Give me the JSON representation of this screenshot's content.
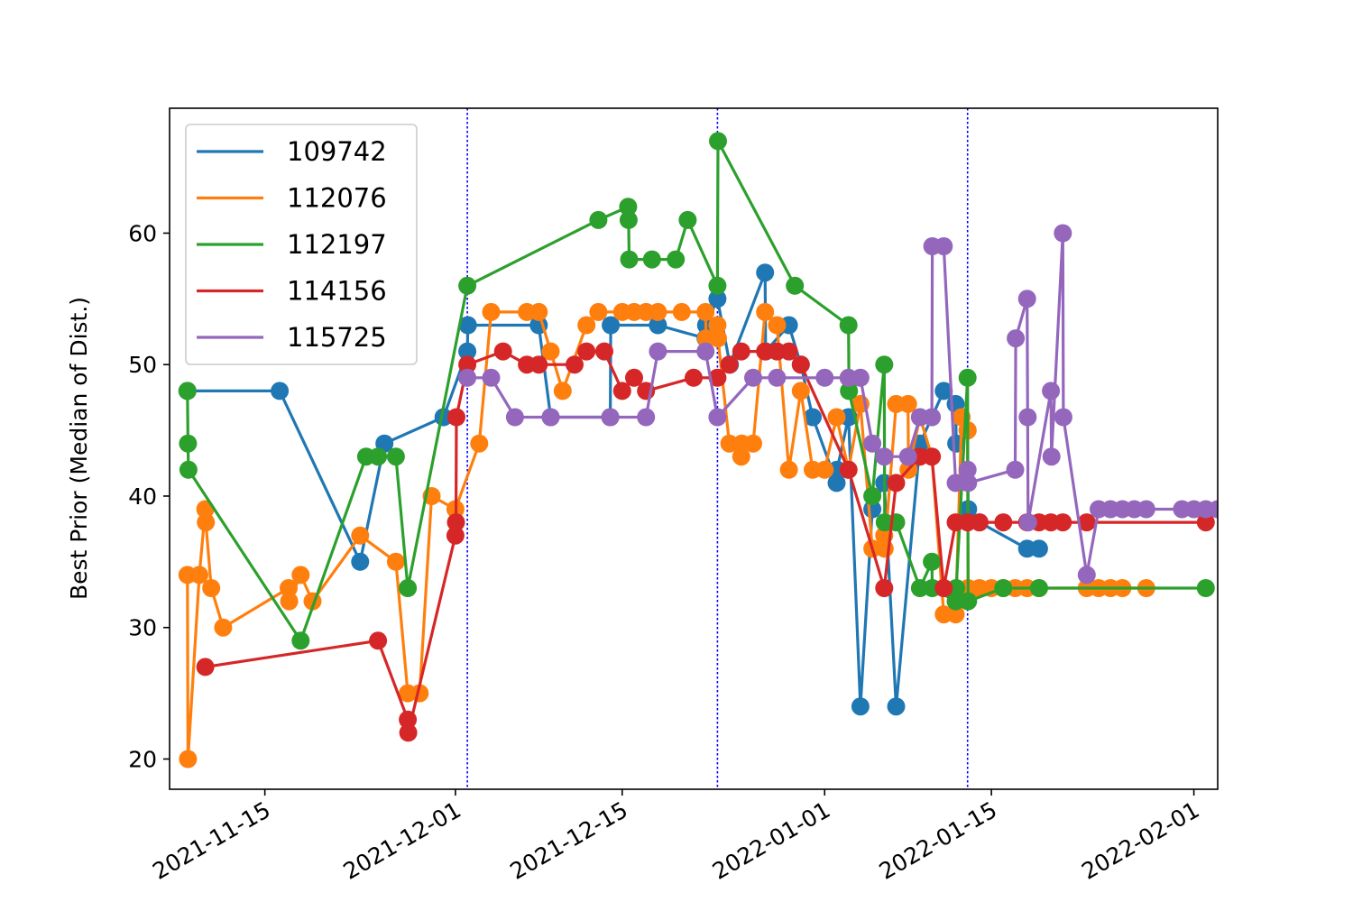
{
  "chart_data": {
    "type": "line",
    "xlabel": "",
    "ylabel": "Best Prior (Median of Dist.)",
    "xlim": [
      "2021-11-07",
      "2022-02-03"
    ],
    "ylim": [
      17.7,
      69.5
    ],
    "x_ticks": [
      "2021-11-15",
      "2021-12-01",
      "2021-12-15",
      "2022-01-01",
      "2022-01-15",
      "2022-02-01"
    ],
    "y_ticks": [
      20,
      30,
      40,
      50,
      60
    ],
    "grid": false,
    "legend": {
      "placement": "upper-left"
    },
    "vlines": [
      "2021-12-02",
      "2021-12-23",
      "2022-01-13"
    ],
    "vline_color": "#0000ff",
    "series": [
      {
        "name": "109742",
        "color": "#1f77b4",
        "points": [
          [
            "2021-11-08T12:00",
            48
          ],
          [
            "2021-11-16T06:00",
            48
          ],
          [
            "2021-11-23T00:00",
            35
          ],
          [
            "2021-11-25T01:00",
            44
          ],
          [
            "2021-11-30T00:00",
            46
          ],
          [
            "2021-12-02T00:00",
            51
          ],
          [
            "2021-12-02T01:00",
            53
          ],
          [
            "2021-12-08T00:00",
            53
          ],
          [
            "2021-12-09T00:00",
            46
          ],
          [
            "2021-12-14T00:00",
            46
          ],
          [
            "2021-12-14T01:00",
            53
          ],
          [
            "2021-12-18T00:00",
            53
          ],
          [
            "2021-12-22T00:00",
            52
          ],
          [
            "2021-12-22T01:00",
            53
          ],
          [
            "2021-12-23T00:00",
            55
          ],
          [
            "2021-12-24T01:00",
            50
          ],
          [
            "2021-12-27T00:00",
            57
          ],
          [
            "2021-12-27T01:00",
            51
          ],
          [
            "2021-12-29T00:00",
            53
          ],
          [
            "2021-12-30T00:00",
            50
          ],
          [
            "2021-12-31T00:00",
            46
          ],
          [
            "2022-01-02T00:00",
            41
          ],
          [
            "2022-01-02T01:00",
            42
          ],
          [
            "2022-01-03T00:00",
            46
          ],
          [
            "2022-01-04T00:00",
            24
          ],
          [
            "2022-01-05T00:00",
            39
          ],
          [
            "2022-01-06T00:00",
            41
          ],
          [
            "2022-01-07T00:00",
            24
          ],
          [
            "2022-01-09T00:00",
            44
          ],
          [
            "2022-01-11T00:00",
            48
          ],
          [
            "2022-01-12T00:00",
            47
          ],
          [
            "2022-01-12T01:00",
            44
          ],
          [
            "2022-01-13T00:00",
            45
          ],
          [
            "2022-01-13T01:00",
            39
          ],
          [
            "2022-01-14T00:00",
            38
          ],
          [
            "2022-01-18T00:00",
            36
          ],
          [
            "2022-01-19T00:00",
            36
          ]
        ]
      },
      {
        "name": "112076",
        "color": "#ff7f0e",
        "points": [
          [
            "2021-11-08T12:00",
            34
          ],
          [
            "2021-11-08T13:00",
            20
          ],
          [
            "2021-11-09T12:00",
            34
          ],
          [
            "2021-11-10T00:00",
            39
          ],
          [
            "2021-11-10T01:00",
            38
          ],
          [
            "2021-11-10T12:00",
            33
          ],
          [
            "2021-11-11T12:00",
            30
          ],
          [
            "2021-11-17T00:00",
            33
          ],
          [
            "2021-11-17T01:00",
            32
          ],
          [
            "2021-11-18T00:00",
            34
          ],
          [
            "2021-11-19T00:00",
            32
          ],
          [
            "2021-11-23T00:00",
            37
          ],
          [
            "2021-11-26T00:00",
            35
          ],
          [
            "2021-11-27T00:00",
            25
          ],
          [
            "2021-11-28T00:00",
            25
          ],
          [
            "2021-11-29T00:00",
            40
          ],
          [
            "2021-12-01T00:00",
            39
          ],
          [
            "2021-12-03T00:00",
            44
          ],
          [
            "2021-12-04T00:00",
            54
          ],
          [
            "2021-12-07T00:00",
            54
          ],
          [
            "2021-12-08T00:00",
            54
          ],
          [
            "2021-12-09T00:00",
            51
          ],
          [
            "2021-12-10T00:00",
            48
          ],
          [
            "2021-12-12T00:00",
            53
          ],
          [
            "2021-12-13T00:00",
            54
          ],
          [
            "2021-12-15T00:00",
            54
          ],
          [
            "2021-12-16T00:00",
            54
          ],
          [
            "2021-12-17T00:00",
            54
          ],
          [
            "2021-12-18T00:00",
            54
          ],
          [
            "2021-12-20T00:00",
            54
          ],
          [
            "2021-12-22T00:00",
            54
          ],
          [
            "2021-12-22T01:00",
            52
          ],
          [
            "2021-12-23T00:00",
            53
          ],
          [
            "2021-12-23T01:00",
            52
          ],
          [
            "2021-12-24T00:00",
            44
          ],
          [
            "2021-12-25T00:00",
            43
          ],
          [
            "2021-12-25T01:00",
            44
          ],
          [
            "2021-12-26T00:00",
            44
          ],
          [
            "2021-12-27T00:00",
            54
          ],
          [
            "2021-12-28T00:00",
            53
          ],
          [
            "2021-12-29T00:00",
            42
          ],
          [
            "2021-12-30T00:00",
            48
          ],
          [
            "2021-12-31T00:00",
            42
          ],
          [
            "2022-01-01T00:00",
            42
          ],
          [
            "2022-01-02T00:00",
            46
          ],
          [
            "2022-01-03T00:00",
            42
          ],
          [
            "2022-01-04T00:00",
            47
          ],
          [
            "2022-01-05T00:00",
            36
          ],
          [
            "2022-01-06T00:00",
            37
          ],
          [
            "2022-01-06T01:00",
            36
          ],
          [
            "2022-01-07T00:00",
            47
          ],
          [
            "2022-01-08T00:00",
            47
          ],
          [
            "2022-01-08T01:00",
            42
          ],
          [
            "2022-01-09T00:00",
            46
          ],
          [
            "2022-01-10T00:00",
            43
          ],
          [
            "2022-01-11T00:00",
            31
          ],
          [
            "2022-01-12T00:00",
            31
          ],
          [
            "2022-01-12T12:00",
            46
          ],
          [
            "2022-01-13T00:00",
            45
          ],
          [
            "2022-01-13T01:00",
            33
          ],
          [
            "2022-01-14T00:00",
            33
          ],
          [
            "2022-01-15T00:00",
            33
          ],
          [
            "2022-01-16T00:00",
            33
          ],
          [
            "2022-01-17T00:00",
            33
          ],
          [
            "2022-01-18T00:00",
            33
          ],
          [
            "2022-01-19T00:00",
            33
          ],
          [
            "2022-01-23T00:00",
            33
          ],
          [
            "2022-01-24T00:00",
            33
          ],
          [
            "2022-01-25T00:00",
            33
          ],
          [
            "2022-01-26T00:00",
            33
          ],
          [
            "2022-01-28T00:00",
            33
          ]
        ]
      },
      {
        "name": "112197",
        "color": "#2ca02c",
        "points": [
          [
            "2021-11-08T12:00",
            48
          ],
          [
            "2021-11-08T13:00",
            44
          ],
          [
            "2021-11-08T14:00",
            42
          ],
          [
            "2021-11-18T00:00",
            29
          ],
          [
            "2021-11-23T12:00",
            43
          ],
          [
            "2021-11-24T12:00",
            43
          ],
          [
            "2021-11-26T00:00",
            43
          ],
          [
            "2021-11-27T00:00",
            33
          ],
          [
            "2021-12-02T00:00",
            56
          ],
          [
            "2021-12-13T00:00",
            61
          ],
          [
            "2021-12-15T12:00",
            62
          ],
          [
            "2021-12-15T13:00",
            61
          ],
          [
            "2021-12-15T14:00",
            58
          ],
          [
            "2021-12-17T12:00",
            58
          ],
          [
            "2021-12-19T12:00",
            58
          ],
          [
            "2021-12-20T12:00",
            61
          ],
          [
            "2021-12-23T00:00",
            56
          ],
          [
            "2021-12-23T01:00",
            67
          ],
          [
            "2021-12-29T12:00",
            56
          ],
          [
            "2022-01-03T00:00",
            53
          ],
          [
            "2022-01-03T01:00",
            48
          ],
          [
            "2022-01-05T00:00",
            40
          ],
          [
            "2022-01-06T00:00",
            50
          ],
          [
            "2022-01-06T01:00",
            38
          ],
          [
            "2022-01-07T00:00",
            38
          ],
          [
            "2022-01-09T00:00",
            33
          ],
          [
            "2022-01-10T00:00",
            35
          ],
          [
            "2022-01-10T01:00",
            33
          ],
          [
            "2022-01-12T00:00",
            32
          ],
          [
            "2022-01-12T01:00",
            33
          ],
          [
            "2022-01-13T00:00",
            49
          ],
          [
            "2022-01-13T01:00",
            32
          ],
          [
            "2022-01-16T00:00",
            33
          ],
          [
            "2022-01-19T00:00",
            33
          ],
          [
            "2022-02-02T00:00",
            33
          ]
        ]
      },
      {
        "name": "114156",
        "color": "#d62728",
        "points": [
          [
            "2021-11-10T00:00",
            27
          ],
          [
            "2021-11-24T12:00",
            29
          ],
          [
            "2021-11-27T00:00",
            23
          ],
          [
            "2021-11-27T01:00",
            22
          ],
          [
            "2021-12-01T00:00",
            37
          ],
          [
            "2021-12-01T01:00",
            38
          ],
          [
            "2021-12-01T02:00",
            46
          ],
          [
            "2021-12-02T00:00",
            50
          ],
          [
            "2021-12-05T00:00",
            51
          ],
          [
            "2021-12-07T00:00",
            50
          ],
          [
            "2021-12-08T00:00",
            50
          ],
          [
            "2021-12-11T00:00",
            50
          ],
          [
            "2021-12-12T00:00",
            51
          ],
          [
            "2021-12-13T12:00",
            51
          ],
          [
            "2021-12-15T00:00",
            48
          ],
          [
            "2021-12-16T00:00",
            49
          ],
          [
            "2021-12-17T00:00",
            48
          ],
          [
            "2021-12-21T00:00",
            49
          ],
          [
            "2021-12-23T00:00",
            49
          ],
          [
            "2021-12-24T00:00",
            50
          ],
          [
            "2021-12-25T00:00",
            51
          ],
          [
            "2021-12-27T00:00",
            51
          ],
          [
            "2021-12-28T00:00",
            51
          ],
          [
            "2021-12-29T00:00",
            51
          ],
          [
            "2021-12-30T00:00",
            50
          ],
          [
            "2022-01-03T00:00",
            42
          ],
          [
            "2022-01-06T00:00",
            33
          ],
          [
            "2022-01-07T00:00",
            41
          ],
          [
            "2022-01-09T00:00",
            43
          ],
          [
            "2022-01-10T00:00",
            43
          ],
          [
            "2022-01-11T00:00",
            33
          ],
          [
            "2022-01-12T00:00",
            38
          ],
          [
            "2022-01-13T00:00",
            38
          ],
          [
            "2022-01-14T00:00",
            38
          ],
          [
            "2022-01-16T00:00",
            38
          ],
          [
            "2022-01-18T00:00",
            38
          ],
          [
            "2022-01-19T00:00",
            38
          ],
          [
            "2022-01-20T00:00",
            38
          ],
          [
            "2022-01-21T00:00",
            38
          ],
          [
            "2022-01-23T00:00",
            38
          ],
          [
            "2022-02-02T00:00",
            38
          ]
        ]
      },
      {
        "name": "115725",
        "color": "#9467bd",
        "points": [
          [
            "2021-12-02T00:00",
            49
          ],
          [
            "2021-12-04T00:00",
            49
          ],
          [
            "2021-12-06T00:00",
            46
          ],
          [
            "2021-12-09T00:00",
            46
          ],
          [
            "2021-12-14T00:00",
            46
          ],
          [
            "2021-12-17T00:00",
            46
          ],
          [
            "2021-12-18T00:00",
            51
          ],
          [
            "2021-12-22T00:00",
            51
          ],
          [
            "2021-12-23T00:00",
            46
          ],
          [
            "2021-12-26T00:00",
            49
          ],
          [
            "2021-12-28T00:00",
            49
          ],
          [
            "2022-01-01T00:00",
            49
          ],
          [
            "2022-01-03T00:00",
            49
          ],
          [
            "2022-01-04T00:00",
            49
          ],
          [
            "2022-01-05T00:00",
            44
          ],
          [
            "2022-01-06T00:00",
            43
          ],
          [
            "2022-01-08T00:00",
            43
          ],
          [
            "2022-01-09T00:00",
            46
          ],
          [
            "2022-01-10T00:00",
            46
          ],
          [
            "2022-01-10T01:00",
            59
          ],
          [
            "2022-01-11T00:00",
            59
          ],
          [
            "2022-01-12T00:00",
            41
          ],
          [
            "2022-01-13T00:00",
            42
          ],
          [
            "2022-01-13T01:00",
            41
          ],
          [
            "2022-01-17T00:00",
            42
          ],
          [
            "2022-01-17T01:00",
            52
          ],
          [
            "2022-01-18T00:00",
            55
          ],
          [
            "2022-01-18T01:00",
            46
          ],
          [
            "2022-01-18T02:00",
            38
          ],
          [
            "2022-01-20T00:00",
            48
          ],
          [
            "2022-01-20T01:00",
            43
          ],
          [
            "2022-01-21T00:00",
            60
          ],
          [
            "2022-01-21T01:00",
            46
          ],
          [
            "2022-01-23T00:00",
            34
          ],
          [
            "2022-01-24T00:00",
            39
          ],
          [
            "2022-01-25T00:00",
            39
          ],
          [
            "2022-01-26T00:00",
            39
          ],
          [
            "2022-01-27T00:00",
            39
          ],
          [
            "2022-01-28T00:00",
            39
          ],
          [
            "2022-01-31T00:00",
            39
          ],
          [
            "2022-02-01T00:00",
            39
          ],
          [
            "2022-02-02T00:00",
            39
          ],
          [
            "2022-02-03T00:00",
            39
          ]
        ]
      }
    ]
  }
}
